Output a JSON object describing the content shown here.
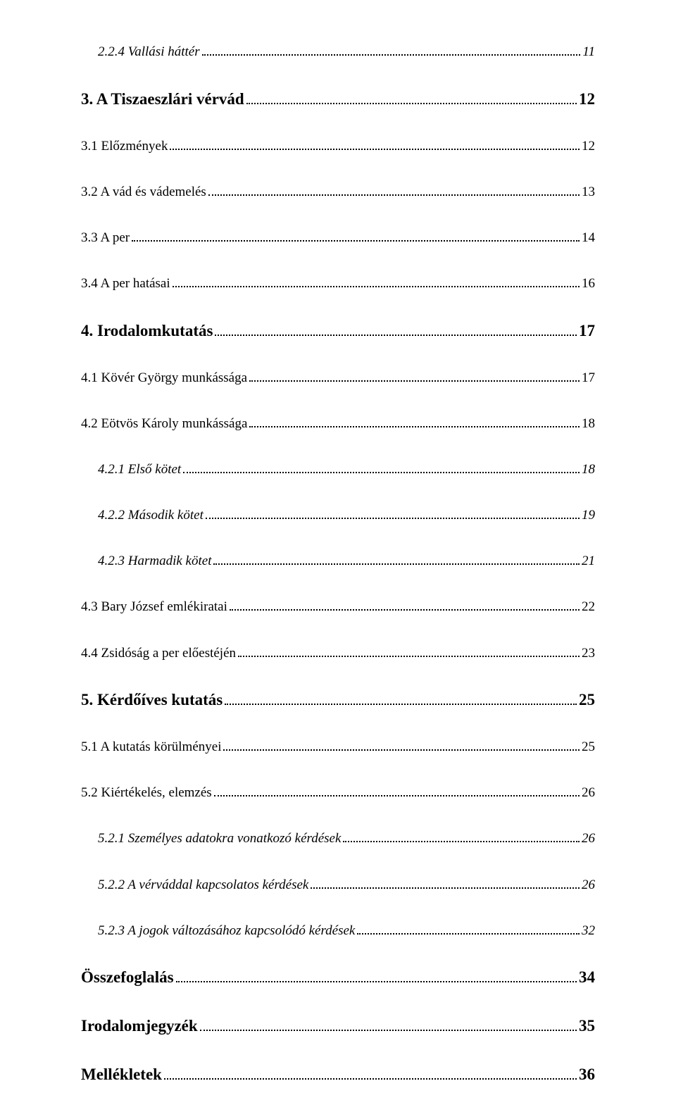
{
  "toc": [
    {
      "label": "2.2.4 Vallási háttér",
      "page": "11",
      "level": "lvl-3",
      "first": true
    },
    {
      "label": "3. A Tiszaeszlári vérvád",
      "page": "12",
      "level": "lvl-h1"
    },
    {
      "label": "3.1 Előzmények",
      "page": "12",
      "level": "lvl-2"
    },
    {
      "label": "3.2 A vád és vádemelés",
      "page": "13",
      "level": "lvl-2"
    },
    {
      "label": "3.3 A per",
      "page": "14",
      "level": "lvl-2"
    },
    {
      "label": "3.4 A per hatásai",
      "page": "16",
      "level": "lvl-2"
    },
    {
      "label": "4. Irodalomkutatás",
      "page": "17",
      "level": "lvl-h1"
    },
    {
      "label": "4.1 Kövér György munkássága",
      "page": "17",
      "level": "lvl-2"
    },
    {
      "label": "4.2 Eötvös Károly munkássága",
      "page": "18",
      "level": "lvl-2"
    },
    {
      "label": "4.2.1 Első kötet",
      "page": "18",
      "level": "lvl-3"
    },
    {
      "label": "4.2.2 Második kötet",
      "page": "19",
      "level": "lvl-3"
    },
    {
      "label": "4.2.3 Harmadik kötet",
      "page": "21",
      "level": "lvl-3"
    },
    {
      "label": "4.3 Bary József emlékiratai",
      "page": "22",
      "level": "lvl-2"
    },
    {
      "label": "4.4 Zsidóság a per előestéjén",
      "page": "23",
      "level": "lvl-2"
    },
    {
      "label": "5. Kérdőíves kutatás",
      "page": "25",
      "level": "lvl-h1"
    },
    {
      "label": "5.1 A kutatás körülményei",
      "page": "25",
      "level": "lvl-2"
    },
    {
      "label": "5.2 Kiértékelés, elemzés",
      "page": "26",
      "level": "lvl-2"
    },
    {
      "label": "5.2.1 Személyes adatokra vonatkozó kérdések",
      "page": "26",
      "level": "lvl-3"
    },
    {
      "label": "5.2.2 A vérváddal kapcsolatos kérdések",
      "page": "26",
      "level": "lvl-3"
    },
    {
      "label": "5.2.3 A jogok változásához kapcsolódó kérdések",
      "page": "32",
      "level": "lvl-3"
    },
    {
      "label": "Összefoglalás",
      "page": "34",
      "level": "lvl-h1"
    },
    {
      "label": "Irodalomjegyzék",
      "page": "35",
      "level": "lvl-h1"
    },
    {
      "label": "Mellékletek",
      "page": "36",
      "level": "lvl-h1"
    }
  ]
}
